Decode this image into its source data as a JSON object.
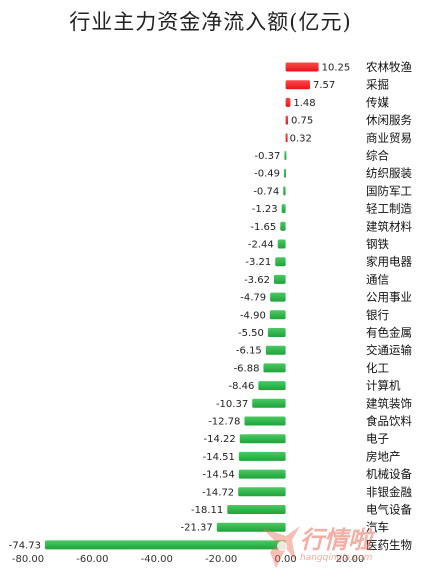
{
  "title": "行业主力资金净流入额(亿元)",
  "watermark": {
    "text": "行情啦",
    "url": "hangqingla.com"
  },
  "chart_data": {
    "type": "bar",
    "orientation": "horizontal",
    "title": "行业主力资金净流入额(亿元)",
    "xlim": [
      -80,
      20
    ],
    "xticks": [
      -80,
      -60,
      -40,
      -20,
      0,
      20
    ],
    "tick_labels": [
      "-80.00",
      "-60.00",
      "-40.00",
      "-20.00",
      "0.00",
      "20.00"
    ],
    "categories": [
      "农林牧渔",
      "采掘",
      "传媒",
      "休闲服务",
      "商业贸易",
      "综合",
      "纺织服装",
      "国防军工",
      "轻工制造",
      "建筑材料",
      "钢铁",
      "家用电器",
      "通信",
      "公用事业",
      "银行",
      "有色金属",
      "交通运输",
      "化工",
      "计算机",
      "建筑装饰",
      "食品饮料",
      "电子",
      "房地产",
      "机械设备",
      "非银金融",
      "电气设备",
      "汽车",
      "医药生物"
    ],
    "values": [
      10.25,
      7.57,
      1.48,
      0.75,
      0.32,
      -0.37,
      -0.49,
      -0.74,
      -1.23,
      -1.65,
      -2.44,
      -3.21,
      -3.62,
      -4.79,
      -4.9,
      -5.5,
      -6.15,
      -6.88,
      -8.46,
      -10.37,
      -12.78,
      -14.22,
      -14.51,
      -14.54,
      -14.72,
      -18.11,
      -21.37,
      -74.73
    ],
    "value_labels": [
      "10.25",
      "7.57",
      "1.48",
      "0.75",
      "0.32",
      "-0.37",
      "-0.49",
      "-0.74",
      "-1.23",
      "-1.65",
      "-2.44",
      "-3.21",
      "-3.62",
      "-4.79",
      "-4.90",
      "-5.50",
      "-6.15",
      "-6.88",
      "-8.46",
      "-10.37",
      "-12.78",
      "-14.22",
      "-14.51",
      "-14.54",
      "-14.72",
      "-18.11",
      "-21.37",
      "-74.73"
    ],
    "colors": {
      "positive": "#e8141b",
      "negative": "#1fa33a"
    },
    "grid": false,
    "legend": "none"
  }
}
